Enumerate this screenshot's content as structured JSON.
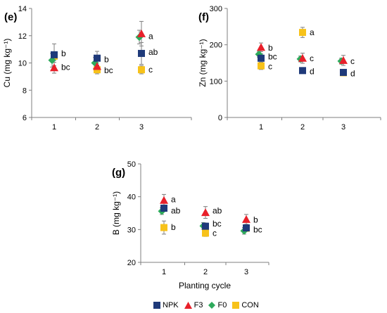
{
  "colors": {
    "NPK": "#1F3A7A",
    "F3": "#E8202A",
    "F0": "#2EAA5C",
    "CON": "#F7C21A",
    "error_bar": "#7f7f7f",
    "axis": "#7f7f7f"
  },
  "legend": [
    {
      "series": "NPK",
      "label": "NPK",
      "marker": "square"
    },
    {
      "series": "F3",
      "label": "F3",
      "marker": "triangle"
    },
    {
      "series": "F0",
      "label": "F0",
      "marker": "diamond"
    },
    {
      "series": "CON",
      "label": "CON",
      "marker": "square"
    }
  ],
  "chart_data": [
    {
      "type": "scatter",
      "panel": "(e)",
      "ylabel": "Cu (mg kg⁻¹)",
      "xlabel": "",
      "categories": [
        "1",
        "2",
        "3"
      ],
      "ylim": [
        6,
        14
      ],
      "yticks": [
        6,
        8,
        10,
        12,
        14
      ],
      "series": [
        {
          "name": "NPK",
          "values": [
            10.6,
            10.35,
            10.7
          ],
          "errors": [
            0.8,
            0.5,
            0.8
          ]
        },
        {
          "name": "F3",
          "values": [
            9.65,
            9.75,
            12.15
          ],
          "errors": [
            0.4,
            0.4,
            0.9
          ]
        },
        {
          "name": "F0",
          "values": [
            10.2,
            10.0,
            11.9
          ],
          "errors": [
            0.5,
            0.4,
            0.5
          ]
        },
        {
          "name": "CON",
          "values": [
            10.5,
            9.5,
            9.5
          ],
          "errors": [
            0.3,
            0.3,
            0.3
          ]
        }
      ],
      "annotations": [
        {
          "x": "1",
          "y": 10.7,
          "text": "b"
        },
        {
          "x": "1",
          "y": 9.7,
          "text": "bc"
        },
        {
          "x": "2",
          "y": 10.25,
          "text": "b"
        },
        {
          "x": "2",
          "y": 9.45,
          "text": "bc"
        },
        {
          "x": "3",
          "y": 11.95,
          "text": "a"
        },
        {
          "x": "3",
          "y": 10.8,
          "text": "ab"
        },
        {
          "x": "3",
          "y": 9.5,
          "text": "c"
        }
      ]
    },
    {
      "type": "scatter",
      "panel": "(f)",
      "ylabel": "Zn (mg kg⁻¹)",
      "xlabel": "",
      "categories": [
        "1",
        "2",
        "3"
      ],
      "ylim": [
        0,
        300
      ],
      "yticks": [
        0,
        100,
        200,
        300
      ],
      "series": [
        {
          "name": "NPK",
          "values": [
            163,
            129,
            124
          ],
          "errors": [
            12,
            8,
            8
          ]
        },
        {
          "name": "F3",
          "values": [
            193,
            163,
            157
          ],
          "errors": [
            12,
            14,
            14
          ]
        },
        {
          "name": "F0",
          "values": [
            174,
            161,
            155
          ],
          "errors": [
            8,
            8,
            8
          ]
        },
        {
          "name": "CON",
          "values": [
            142,
            234,
            123
          ],
          "errors": [
            10,
            14,
            8
          ]
        }
      ],
      "annotations": [
        {
          "x": "1",
          "y": 192,
          "text": "b"
        },
        {
          "x": "1",
          "y": 167,
          "text": "bc"
        },
        {
          "x": "1",
          "y": 140,
          "text": "c"
        },
        {
          "x": "2",
          "y": 234,
          "text": "a"
        },
        {
          "x": "2",
          "y": 163,
          "text": "c"
        },
        {
          "x": "2",
          "y": 127,
          "text": "d"
        },
        {
          "x": "3",
          "y": 155,
          "text": "c"
        },
        {
          "x": "3",
          "y": 121,
          "text": "d"
        }
      ]
    },
    {
      "type": "scatter",
      "panel": "(g)",
      "ylabel": "B (mg kg⁻¹)",
      "xlabel": "Planting cycle",
      "categories": [
        "1",
        "2",
        "3"
      ],
      "ylim": [
        20,
        50
      ],
      "yticks": [
        20,
        30,
        40,
        50
      ],
      "series": [
        {
          "name": "NPK",
          "values": [
            36.5,
            31.0,
            30.5
          ],
          "errors": [
            1.0,
            1.0,
            1.0
          ]
        },
        {
          "name": "F3",
          "values": [
            38.9,
            35.2,
            33.1
          ],
          "errors": [
            1.8,
            1.8,
            1.5
          ]
        },
        {
          "name": "F0",
          "values": [
            35.6,
            31.1,
            29.6
          ],
          "errors": [
            1.0,
            1.0,
            1.0
          ]
        },
        {
          "name": "CON",
          "values": [
            30.6,
            28.9,
            30.4
          ],
          "errors": [
            2.0,
            1.0,
            1.0
          ]
        }
      ],
      "annotations": [
        {
          "x": "1",
          "y": 39.2,
          "text": "a"
        },
        {
          "x": "1",
          "y": 35.7,
          "text": "ab"
        },
        {
          "x": "1",
          "y": 30.7,
          "text": "b"
        },
        {
          "x": "2",
          "y": 35.7,
          "text": "ab"
        },
        {
          "x": "2",
          "y": 31.8,
          "text": "bc"
        },
        {
          "x": "2",
          "y": 28.9,
          "text": "c"
        },
        {
          "x": "3",
          "y": 33.0,
          "text": "b"
        },
        {
          "x": "3",
          "y": 30.0,
          "text": "bc"
        }
      ]
    }
  ]
}
